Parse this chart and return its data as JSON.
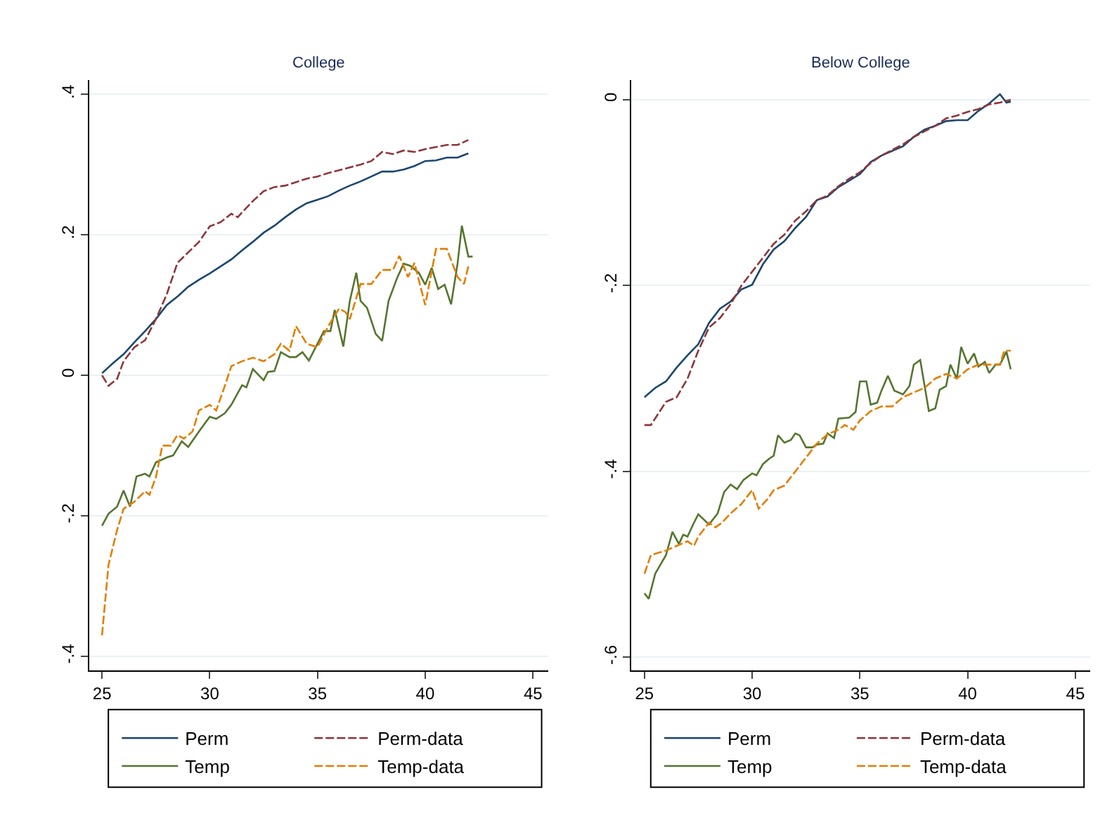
{
  "chart_data": [
    {
      "type": "line",
      "title": "College",
      "xlim": [
        24.4,
        45.7
      ],
      "xticks": [
        25,
        30,
        35,
        40,
        45
      ],
      "ylim": [
        -0.42,
        0.42
      ],
      "yticks": [
        {
          "value": 0.4,
          "label": ".4"
        },
        {
          "value": 0.2,
          "label": ".2"
        },
        0,
        {
          "value": -0.2,
          "label": "-.2"
        },
        {
          "value": -0.4,
          "label": "-.4"
        }
      ],
      "grid": "y",
      "legend": "bottom",
      "series": [
        {
          "name": "Perm",
          "color": "#1a476f",
          "line_style": "solid",
          "x": [
            25,
            25.5,
            26,
            26.5,
            27,
            27.5,
            28,
            28.5,
            29,
            29.5,
            30,
            30.5,
            31,
            31.5,
            32,
            32.5,
            33,
            33.5,
            34,
            34.5,
            35,
            35.5,
            36,
            36.5,
            37,
            37.5,
            38,
            38.5,
            39,
            39.5,
            40,
            40.5,
            41,
            41.5,
            42
          ],
          "values": [
            0.003,
            0.017,
            0.03,
            0.047,
            0.063,
            0.08,
            0.1,
            0.112,
            0.126,
            0.136,
            0.145,
            0.155,
            0.165,
            0.178,
            0.19,
            0.203,
            0.213,
            0.225,
            0.236,
            0.245,
            0.25,
            0.255,
            0.263,
            0.27,
            0.276,
            0.283,
            0.29,
            0.29,
            0.293,
            0.298,
            0.305,
            0.306,
            0.31,
            0.31,
            0.316
          ]
        },
        {
          "name": "Perm-data",
          "color": "#90353b",
          "line_style": "dashed",
          "x": [
            25,
            25.3,
            25.7,
            26,
            26.5,
            27,
            27.5,
            28,
            28.5,
            29,
            29.5,
            30,
            30.5,
            31,
            31.3,
            31.5,
            32,
            32.5,
            33,
            33.5,
            34,
            34.5,
            35,
            35.5,
            36,
            36.5,
            37,
            37.5,
            38,
            38.5,
            39,
            39.5,
            40,
            40.5,
            41,
            41.5,
            42
          ],
          "values": [
            0.0,
            -0.015,
            -0.005,
            0.02,
            0.04,
            0.05,
            0.08,
            0.115,
            0.16,
            0.175,
            0.19,
            0.212,
            0.218,
            0.23,
            0.225,
            0.232,
            0.248,
            0.262,
            0.268,
            0.27,
            0.275,
            0.28,
            0.283,
            0.288,
            0.292,
            0.296,
            0.3,
            0.305,
            0.318,
            0.315,
            0.32,
            0.318,
            0.322,
            0.325,
            0.328,
            0.328,
            0.335
          ]
        },
        {
          "name": "Temp",
          "color": "#55752f",
          "line_style": "solid",
          "x": [
            25,
            25.3,
            25.7,
            26,
            26.3,
            26.6,
            27,
            27.2,
            27.5,
            28,
            28.3,
            28.7,
            29,
            29.5,
            30,
            30.3,
            30.7,
            31,
            31.5,
            31.7,
            32,
            32.5,
            32.7,
            33,
            33.3,
            33.7,
            34,
            34.3,
            34.6,
            35,
            35.3,
            35.6,
            35.8,
            36.2,
            36.5,
            36.8,
            37,
            37.3,
            37.7,
            38,
            38.3,
            38.7,
            39,
            39.3,
            39.7,
            40,
            40.3,
            40.6,
            40.9,
            41.2,
            41.5,
            41.7,
            42,
            42.2
          ],
          "values": [
            -0.214,
            -0.197,
            -0.187,
            -0.164,
            -0.187,
            -0.144,
            -0.14,
            -0.144,
            -0.124,
            -0.117,
            -0.114,
            -0.094,
            -0.102,
            -0.08,
            -0.059,
            -0.062,
            -0.054,
            -0.042,
            -0.014,
            -0.017,
            0.009,
            -0.007,
            0.005,
            0.006,
            0.033,
            0.026,
            0.026,
            0.033,
            0.021,
            0.045,
            0.063,
            0.063,
            0.093,
            0.041,
            0.106,
            0.146,
            0.106,
            0.096,
            0.059,
            0.049,
            0.106,
            0.139,
            0.159,
            0.156,
            0.146,
            0.129,
            0.153,
            0.123,
            0.129,
            0.101,
            0.159,
            0.213,
            0.169,
            0.169
          ]
        },
        {
          "name": "Temp-data",
          "color": "#e37e00",
          "line_style": "dashed",
          "x": [
            25,
            25.3,
            25.7,
            26,
            26.5,
            27,
            27.2,
            27.5,
            27.8,
            28.2,
            28.5,
            28.8,
            29.2,
            29.5,
            30,
            30.3,
            30.7,
            31,
            31.5,
            32,
            32.5,
            33,
            33.3,
            33.7,
            34,
            34.5,
            35,
            35.5,
            36,
            36.3,
            36.5,
            37,
            37.5,
            38,
            38.5,
            38.8,
            39.2,
            39.5,
            40,
            40.5,
            41,
            41.5,
            41.8,
            42
          ],
          "values": [
            -0.37,
            -0.27,
            -0.22,
            -0.19,
            -0.18,
            -0.165,
            -0.17,
            -0.145,
            -0.1,
            -0.1,
            -0.085,
            -0.09,
            -0.08,
            -0.05,
            -0.042,
            -0.05,
            -0.015,
            0.013,
            0.02,
            0.025,
            0.02,
            0.03,
            0.045,
            0.035,
            0.07,
            0.045,
            0.04,
            0.07,
            0.095,
            0.09,
            0.08,
            0.13,
            0.13,
            0.15,
            0.15,
            0.17,
            0.14,
            0.16,
            0.1,
            0.18,
            0.18,
            0.14,
            0.13,
            0.155
          ]
        }
      ]
    },
    {
      "type": "line",
      "title": "Below College",
      "xlim": [
        24.4,
        45.7
      ],
      "xticks": [
        25,
        30,
        35,
        40,
        45
      ],
      "ylim": [
        -0.614,
        0.021
      ],
      "yticks": [
        0,
        {
          "value": -0.2,
          "label": "-.2"
        },
        {
          "value": -0.4,
          "label": "-.4"
        },
        {
          "value": -0.6,
          "label": "-.6"
        }
      ],
      "grid": "y",
      "legend": "bottom",
      "series": [
        {
          "name": "Perm",
          "color": "#1a476f",
          "line_style": "solid",
          "x": [
            25,
            25.5,
            26,
            26.5,
            27,
            27.5,
            28,
            28.5,
            29,
            29.5,
            30,
            30.5,
            31,
            31.5,
            32,
            32.5,
            33,
            33.5,
            34,
            34.5,
            35,
            35.5,
            36,
            36.5,
            37,
            37.5,
            38,
            38.5,
            39,
            39.5,
            40,
            40.5,
            41,
            41.5,
            41.8,
            42
          ],
          "values": [
            -0.32,
            -0.31,
            -0.303,
            -0.288,
            -0.275,
            -0.263,
            -0.24,
            -0.225,
            -0.217,
            -0.204,
            -0.199,
            -0.177,
            -0.161,
            -0.152,
            -0.138,
            -0.126,
            -0.108,
            -0.104,
            -0.094,
            -0.087,
            -0.08,
            -0.067,
            -0.06,
            -0.055,
            -0.05,
            -0.04,
            -0.032,
            -0.028,
            -0.023,
            -0.022,
            -0.022,
            -0.012,
            -0.004,
            0.006,
            -0.003,
            -0.002
          ]
        },
        {
          "name": "Perm-data",
          "color": "#90353b",
          "line_style": "dashed",
          "x": [
            25,
            25.3,
            26,
            26.5,
            27,
            27.5,
            28,
            28.5,
            29,
            29.5,
            30,
            30.5,
            31,
            31.5,
            32,
            32.5,
            33,
            33.5,
            34,
            34.5,
            35,
            35.5,
            36,
            36.5,
            37,
            37.5,
            38,
            38.5,
            39,
            39.5,
            40,
            40.5,
            41,
            41.5,
            42
          ],
          "values": [
            -0.35,
            -0.35,
            -0.325,
            -0.32,
            -0.3,
            -0.27,
            -0.245,
            -0.235,
            -0.22,
            -0.2,
            -0.185,
            -0.17,
            -0.155,
            -0.145,
            -0.13,
            -0.12,
            -0.108,
            -0.103,
            -0.093,
            -0.085,
            -0.078,
            -0.068,
            -0.06,
            -0.054,
            -0.048,
            -0.04,
            -0.034,
            -0.028,
            -0.02,
            -0.017,
            -0.013,
            -0.01,
            -0.005,
            -0.003,
            0.0
          ]
        },
        {
          "name": "Temp",
          "color": "#55752f",
          "line_style": "solid",
          "x": [
            25,
            25.2,
            25.5,
            26,
            26.3,
            26.6,
            26.8,
            27,
            27.3,
            27.5,
            28,
            28.4,
            28.7,
            29,
            29.3,
            29.6,
            30,
            30.2,
            30.5,
            30.8,
            31,
            31.2,
            31.5,
            31.8,
            32,
            32.2,
            32.5,
            32.8,
            33,
            33.3,
            33.5,
            33.8,
            34,
            34.5,
            34.8,
            35,
            35.3,
            35.5,
            35.8,
            36,
            36.3,
            36.6,
            37,
            37.3,
            37.5,
            37.8,
            38.2,
            38.5,
            38.7,
            39,
            39.2,
            39.5,
            39.7,
            40,
            40.3,
            40.5,
            40.8,
            41,
            41.3,
            41.5,
            41.8,
            42
          ],
          "values": [
            -0.531,
            -0.537,
            -0.51,
            -0.49,
            -0.465,
            -0.478,
            -0.468,
            -0.47,
            -0.455,
            -0.446,
            -0.457,
            -0.445,
            -0.422,
            -0.414,
            -0.419,
            -0.409,
            -0.402,
            -0.404,
            -0.392,
            -0.386,
            -0.383,
            -0.361,
            -0.369,
            -0.366,
            -0.359,
            -0.361,
            -0.374,
            -0.374,
            -0.371,
            -0.37,
            -0.359,
            -0.364,
            -0.343,
            -0.342,
            -0.336,
            -0.303,
            -0.303,
            -0.328,
            -0.326,
            -0.313,
            -0.297,
            -0.313,
            -0.317,
            -0.308,
            -0.285,
            -0.28,
            -0.335,
            -0.332,
            -0.312,
            -0.308,
            -0.285,
            -0.3,
            -0.266,
            -0.284,
            -0.273,
            -0.287,
            -0.282,
            -0.294,
            -0.285,
            -0.285,
            -0.271,
            -0.29
          ]
        },
        {
          "name": "Temp-data",
          "color": "#e37e00",
          "line_style": "dashed",
          "x": [
            25,
            25.3,
            26,
            26.5,
            27,
            27.3,
            27.5,
            28,
            28.3,
            28.6,
            29,
            29.5,
            30,
            30.3,
            30.7,
            31,
            31.5,
            32,
            32.5,
            33,
            33.5,
            34,
            34.3,
            34.7,
            35,
            35.5,
            36,
            36.5,
            37,
            37.5,
            38,
            38.5,
            39,
            39.5,
            40,
            40.5,
            41,
            41.5,
            41.7,
            42
          ],
          "values": [
            -0.51,
            -0.49,
            -0.485,
            -0.48,
            -0.475,
            -0.48,
            -0.47,
            -0.455,
            -0.46,
            -0.455,
            -0.445,
            -0.435,
            -0.42,
            -0.44,
            -0.43,
            -0.42,
            -0.415,
            -0.4,
            -0.385,
            -0.37,
            -0.36,
            -0.355,
            -0.35,
            -0.355,
            -0.345,
            -0.335,
            -0.33,
            -0.33,
            -0.32,
            -0.315,
            -0.31,
            -0.3,
            -0.295,
            -0.3,
            -0.29,
            -0.285,
            -0.285,
            -0.285,
            -0.27,
            -0.27
          ]
        }
      ]
    }
  ]
}
